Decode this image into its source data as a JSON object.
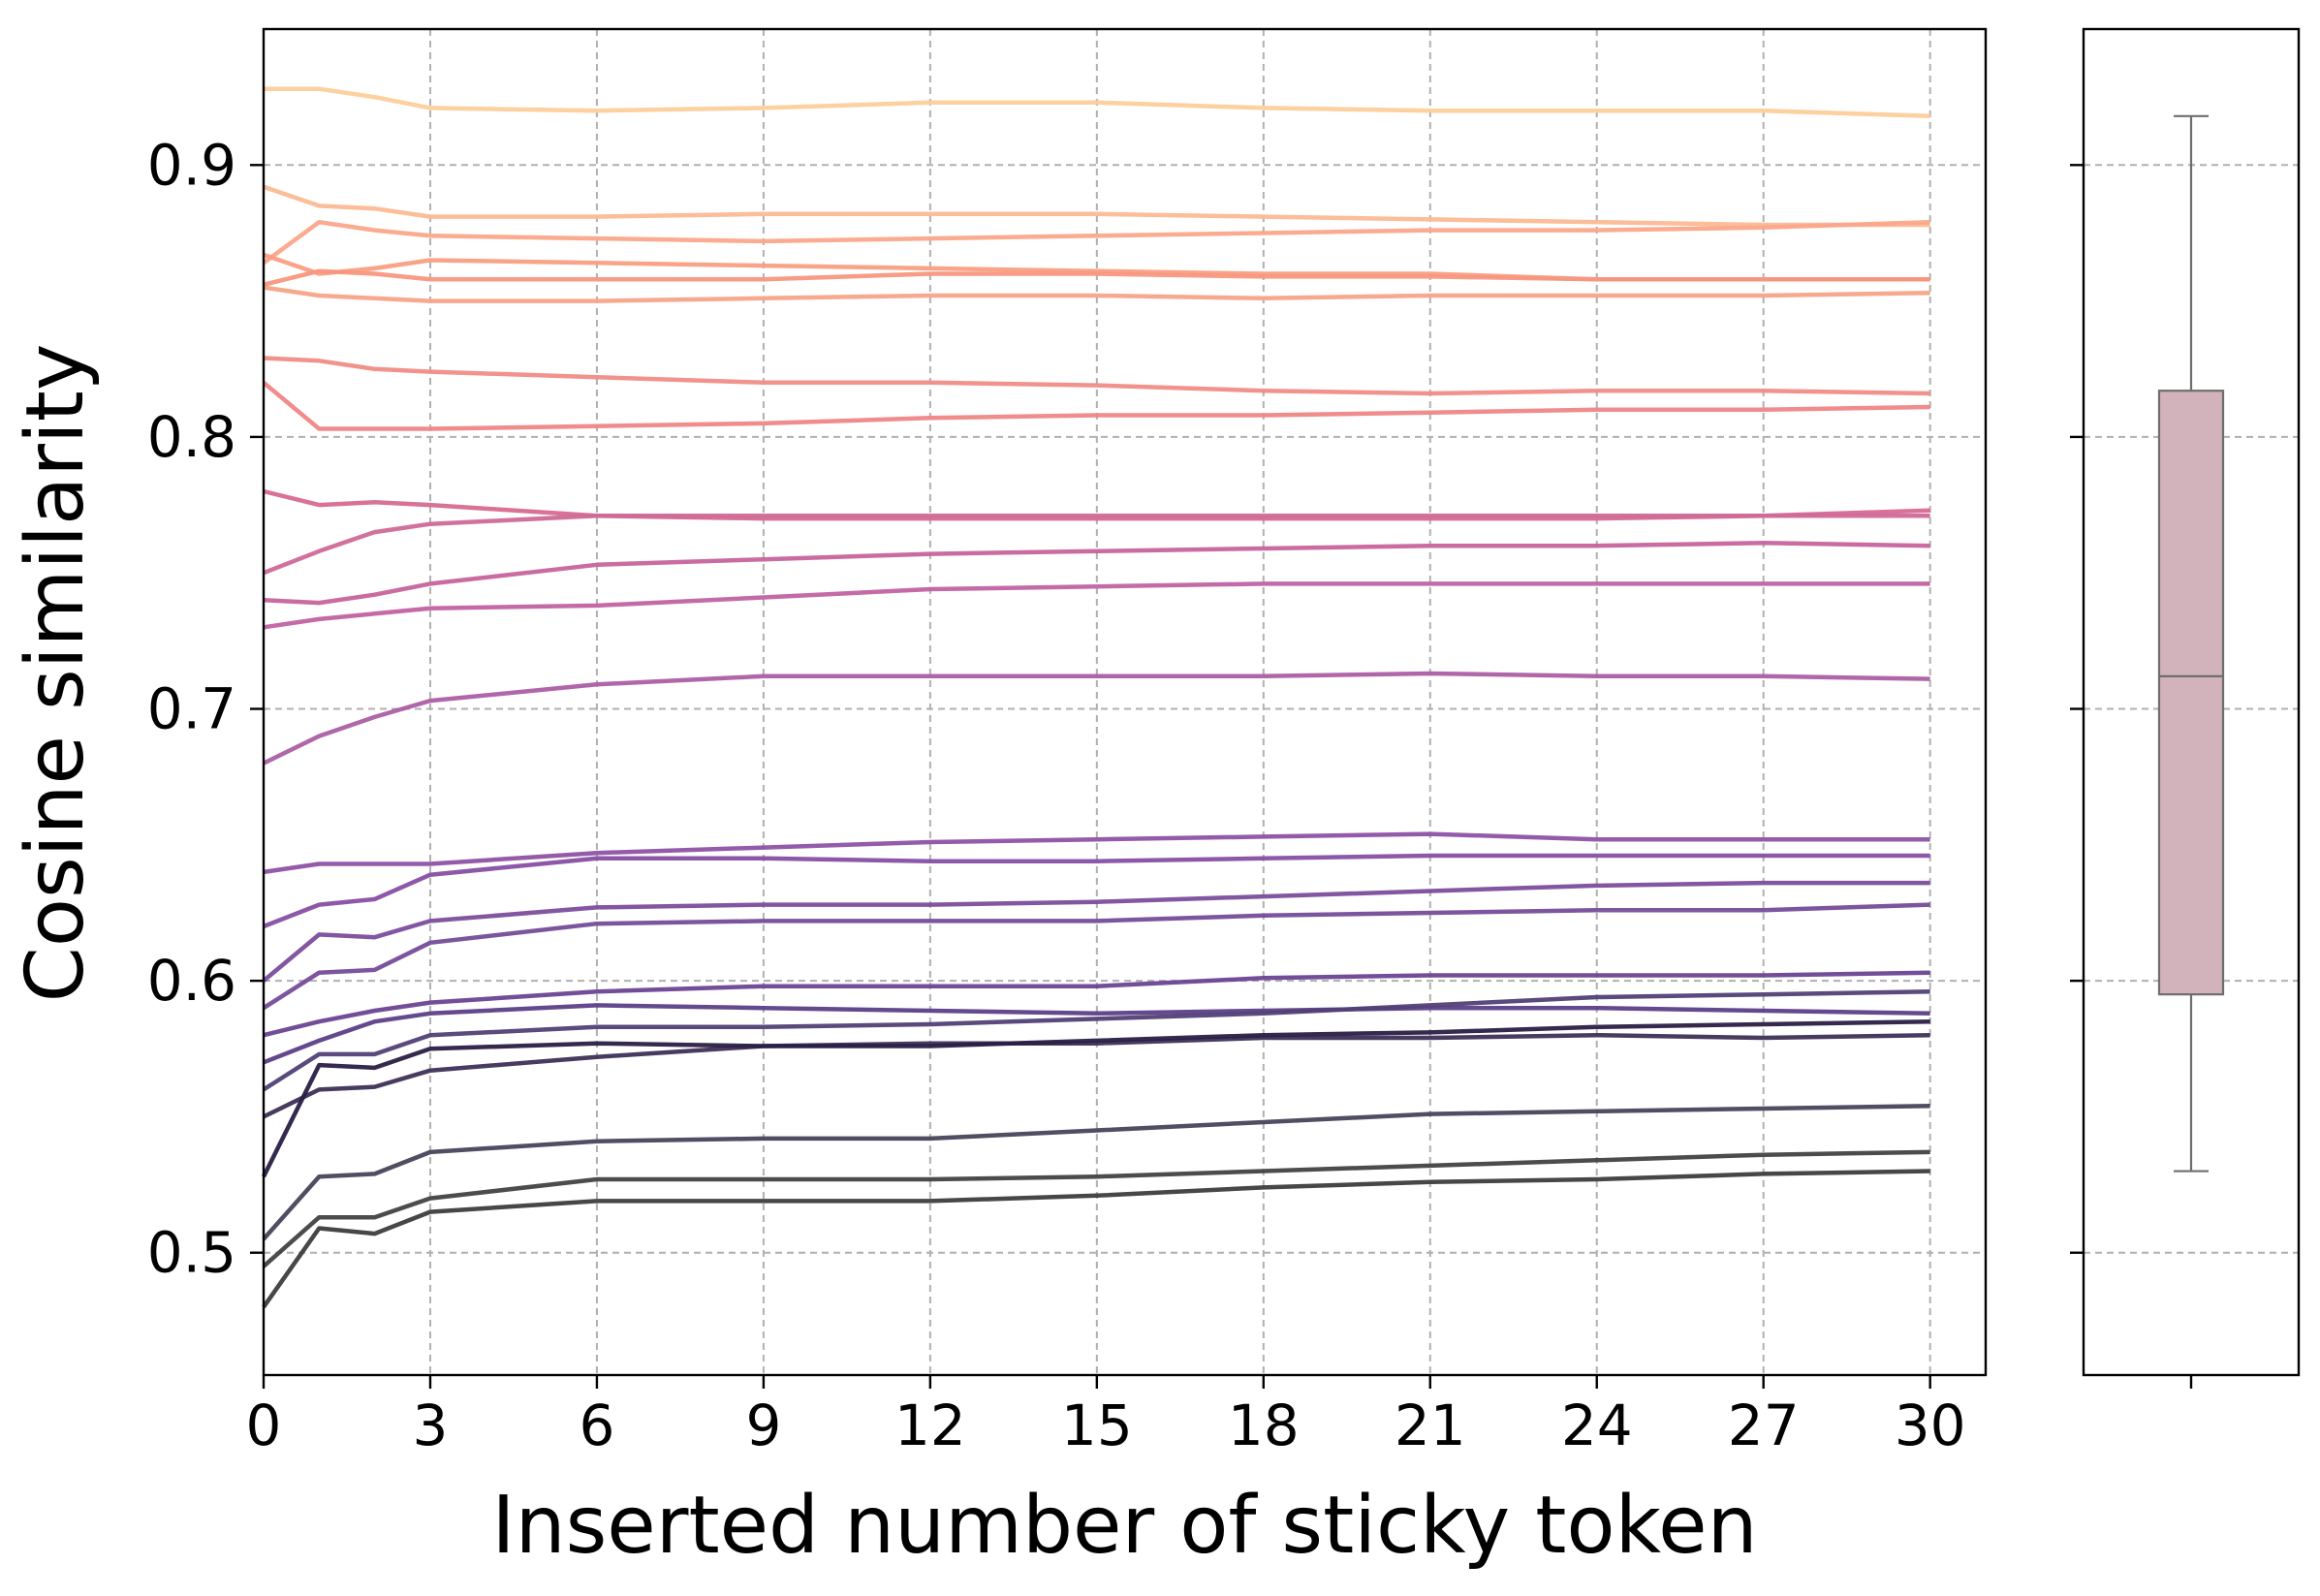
{
  "chart_data": [
    {
      "type": "line",
      "xlabel": "Inserted number of sticky token",
      "ylabel": "Cosine similarity",
      "xlim": [
        0,
        31
      ],
      "ylim": [
        0.455,
        0.95
      ],
      "xticks": [
        0,
        3,
        6,
        9,
        12,
        15,
        18,
        21,
        24,
        27,
        30
      ],
      "yticks": [
        0.5,
        0.6,
        0.7,
        0.8,
        0.9
      ],
      "grid": true,
      "grid_style": "dashed",
      "legend": "none",
      "keypoints_x": [
        0,
        1,
        2,
        3,
        6,
        9,
        12,
        15,
        18,
        21,
        24,
        27,
        30
      ],
      "series": [
        {
          "color": "#fdce9a",
          "values": [
            0.928,
            0.928,
            0.925,
            0.921,
            0.92,
            0.921,
            0.923,
            0.923,
            0.921,
            0.92,
            0.92,
            0.92,
            0.918
          ]
        },
        {
          "color": "#fcb993",
          "values": [
            0.892,
            0.885,
            0.884,
            0.881,
            0.881,
            0.882,
            0.882,
            0.882,
            0.881,
            0.88,
            0.879,
            0.878,
            0.878
          ]
        },
        {
          "color": "#fba789",
          "values": [
            0.864,
            0.879,
            0.876,
            0.874,
            0.873,
            0.872,
            0.873,
            0.874,
            0.875,
            0.876,
            0.876,
            0.877,
            0.879
          ]
        },
        {
          "color": "#f99f83",
          "values": [
            0.867,
            0.86,
            0.862,
            0.865,
            0.864,
            0.863,
            0.862,
            0.861,
            0.86,
            0.86,
            0.858,
            0.858,
            0.858
          ]
        },
        {
          "color": "#f8977f",
          "values": [
            0.856,
            0.861,
            0.86,
            0.858,
            0.858,
            0.858,
            0.86,
            0.86,
            0.859,
            0.859,
            0.858,
            0.858,
            0.858
          ]
        },
        {
          "color": "#f7a487",
          "values": [
            0.855,
            0.852,
            0.851,
            0.85,
            0.85,
            0.851,
            0.852,
            0.852,
            0.851,
            0.852,
            0.852,
            0.852,
            0.853
          ]
        },
        {
          "color": "#f08d86",
          "values": [
            0.829,
            0.828,
            0.825,
            0.824,
            0.822,
            0.82,
            0.82,
            0.819,
            0.817,
            0.816,
            0.817,
            0.817,
            0.816
          ]
        },
        {
          "color": "#ef8686",
          "values": [
            0.82,
            0.803,
            0.803,
            0.803,
            0.804,
            0.805,
            0.807,
            0.808,
            0.808,
            0.809,
            0.81,
            0.81,
            0.811
          ]
        },
        {
          "color": "#d76a90",
          "values": [
            0.78,
            0.775,
            0.776,
            0.775,
            0.771,
            0.77,
            0.77,
            0.77,
            0.77,
            0.77,
            0.77,
            0.771,
            0.773
          ]
        },
        {
          "color": "#cf6a98",
          "values": [
            0.75,
            0.758,
            0.765,
            0.768,
            0.771,
            0.771,
            0.771,
            0.771,
            0.771,
            0.771,
            0.771,
            0.771,
            0.771
          ]
        },
        {
          "color": "#c7649c",
          "values": [
            0.74,
            0.739,
            0.742,
            0.746,
            0.753,
            0.755,
            0.757,
            0.758,
            0.759,
            0.76,
            0.76,
            0.761,
            0.76
          ]
        },
        {
          "color": "#c163a2",
          "values": [
            0.73,
            0.733,
            0.735,
            0.737,
            0.738,
            0.741,
            0.744,
            0.745,
            0.746,
            0.746,
            0.746,
            0.746,
            0.746
          ]
        },
        {
          "color": "#ac5fa4",
          "values": [
            0.68,
            0.69,
            0.697,
            0.703,
            0.709,
            0.712,
            0.712,
            0.712,
            0.712,
            0.713,
            0.712,
            0.712,
            0.711
          ]
        },
        {
          "color": "#8e52a5",
          "values": [
            0.64,
            0.643,
            0.643,
            0.643,
            0.647,
            0.649,
            0.651,
            0.652,
            0.653,
            0.654,
            0.652,
            0.652,
            0.652
          ]
        },
        {
          "color": "#884fa3",
          "values": [
            0.62,
            0.628,
            0.63,
            0.639,
            0.645,
            0.645,
            0.644,
            0.644,
            0.645,
            0.646,
            0.646,
            0.646,
            0.646
          ]
        },
        {
          "color": "#7c4d9d",
          "values": [
            0.6,
            0.617,
            0.616,
            0.622,
            0.627,
            0.628,
            0.628,
            0.629,
            0.631,
            0.633,
            0.635,
            0.636,
            0.636
          ]
        },
        {
          "color": "#764c99",
          "values": [
            0.59,
            0.603,
            0.604,
            0.614,
            0.621,
            0.622,
            0.622,
            0.622,
            0.624,
            0.625,
            0.626,
            0.626,
            0.628
          ]
        },
        {
          "color": "#6a4593",
          "values": [
            0.58,
            0.585,
            0.589,
            0.592,
            0.596,
            0.598,
            0.598,
            0.598,
            0.601,
            0.602,
            0.602,
            0.602,
            0.603
          ]
        },
        {
          "color": "#5c3f88",
          "values": [
            0.57,
            0.578,
            0.585,
            0.588,
            0.591,
            0.59,
            0.589,
            0.588,
            0.589,
            0.59,
            0.59,
            0.589,
            0.588
          ]
        },
        {
          "color": "#514076",
          "values": [
            0.56,
            0.573,
            0.573,
            0.58,
            0.583,
            0.583,
            0.584,
            0.586,
            0.588,
            0.591,
            0.594,
            0.595,
            0.596
          ]
        },
        {
          "color": "#3e3057",
          "values": [
            0.55,
            0.56,
            0.561,
            0.567,
            0.572,
            0.576,
            0.577,
            0.577,
            0.579,
            0.579,
            0.58,
            0.579,
            0.58
          ]
        },
        {
          "color": "#2a1f45",
          "values": [
            0.528,
            0.569,
            0.568,
            0.575,
            0.577,
            0.576,
            0.576,
            0.578,
            0.58,
            0.581,
            0.583,
            0.584,
            0.585
          ]
        },
        {
          "color": "#48435a",
          "values": [
            0.505,
            0.528,
            0.529,
            0.537,
            0.541,
            0.542,
            0.542,
            0.545,
            0.548,
            0.551,
            0.552,
            0.553,
            0.554
          ]
        },
        {
          "color": "#424242",
          "values": [
            0.495,
            0.513,
            0.513,
            0.52,
            0.527,
            0.527,
            0.527,
            0.528,
            0.53,
            0.532,
            0.534,
            0.536,
            0.537
          ]
        },
        {
          "color": "#3d3d3d",
          "values": [
            0.48,
            0.509,
            0.507,
            0.515,
            0.519,
            0.519,
            0.519,
            0.521,
            0.524,
            0.526,
            0.527,
            0.529,
            0.53
          ]
        }
      ]
    },
    {
      "type": "box",
      "ylim": [
        0.455,
        0.95
      ],
      "yticks": [
        0.5,
        0.6,
        0.7,
        0.8,
        0.9
      ],
      "grid": true,
      "fill_color": "#d2b2bb",
      "line_color": "#6e6e6e",
      "stats": {
        "whisker_low": 0.53,
        "q1": 0.595,
        "median": 0.712,
        "q3": 0.817,
        "whisker_high": 0.918
      }
    }
  ]
}
